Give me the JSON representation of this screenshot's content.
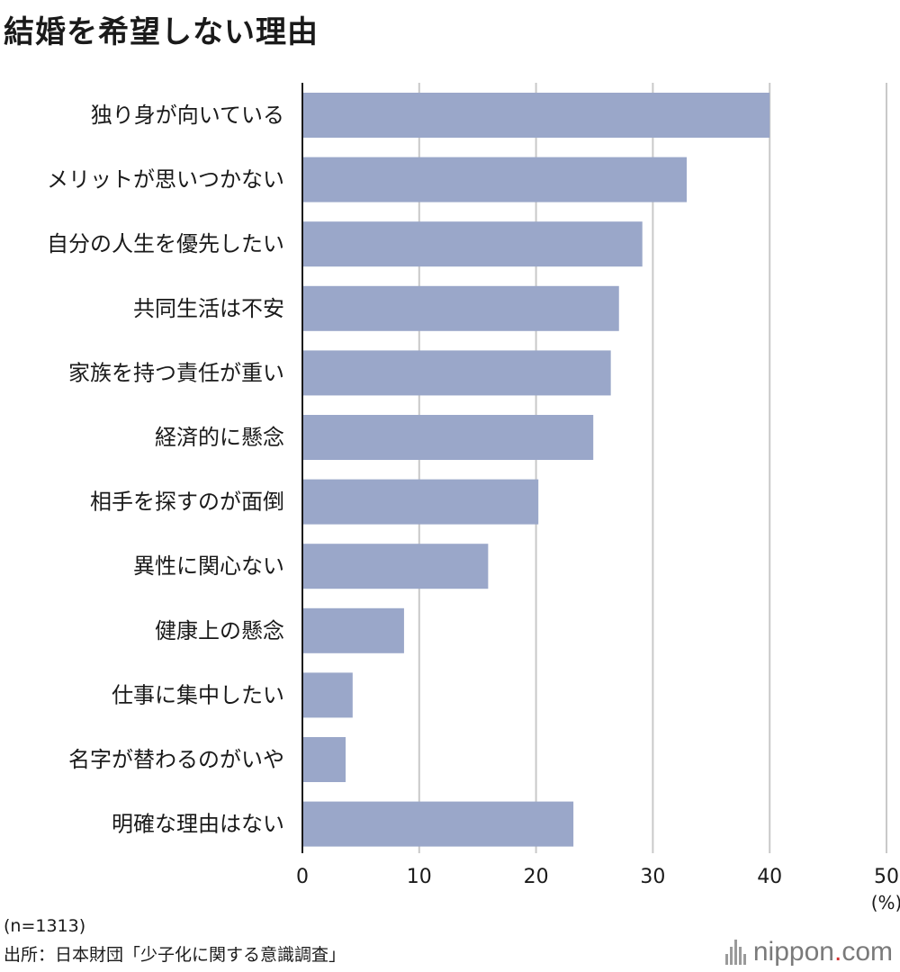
{
  "title": "結婚を希望しない理由",
  "notes": {
    "sample": "(n=1313)",
    "source": "出所：日本財団「少子化に関する意識調査」"
  },
  "brand": {
    "name_prefix": "nippon",
    "dot": ".",
    "name_suffix": "com",
    "icon": "bars-logo-icon"
  },
  "colors": {
    "bar": "#9aa7c9",
    "grid": "#c9c9c9",
    "axis": "#1a1a1a",
    "text": "#1a1a1a",
    "brand_dot": "#d32f2f"
  },
  "chart_data": {
    "type": "bar",
    "orientation": "horizontal",
    "title": "結婚を希望しない理由",
    "categories": [
      "独り身が向いている",
      "メリットが思いつかない",
      "自分の人生を優先したい",
      "共同生活は不安",
      "家族を持つ責任が重い",
      "経済的に懸念",
      "相手を探すのが面倒",
      "異性に関心ない",
      "健康上の懸念",
      "仕事に集中したい",
      "名字が替わるのがいや",
      "明確な理由はない"
    ],
    "values": [
      40.0,
      32.9,
      29.1,
      27.1,
      26.4,
      24.9,
      20.2,
      15.9,
      8.7,
      4.3,
      3.7,
      23.2
    ],
    "xlim": [
      0,
      50
    ],
    "xticks": [
      "0",
      "10",
      "20",
      "30",
      "40",
      "50"
    ],
    "xunit": "(%)",
    "grid": true
  }
}
